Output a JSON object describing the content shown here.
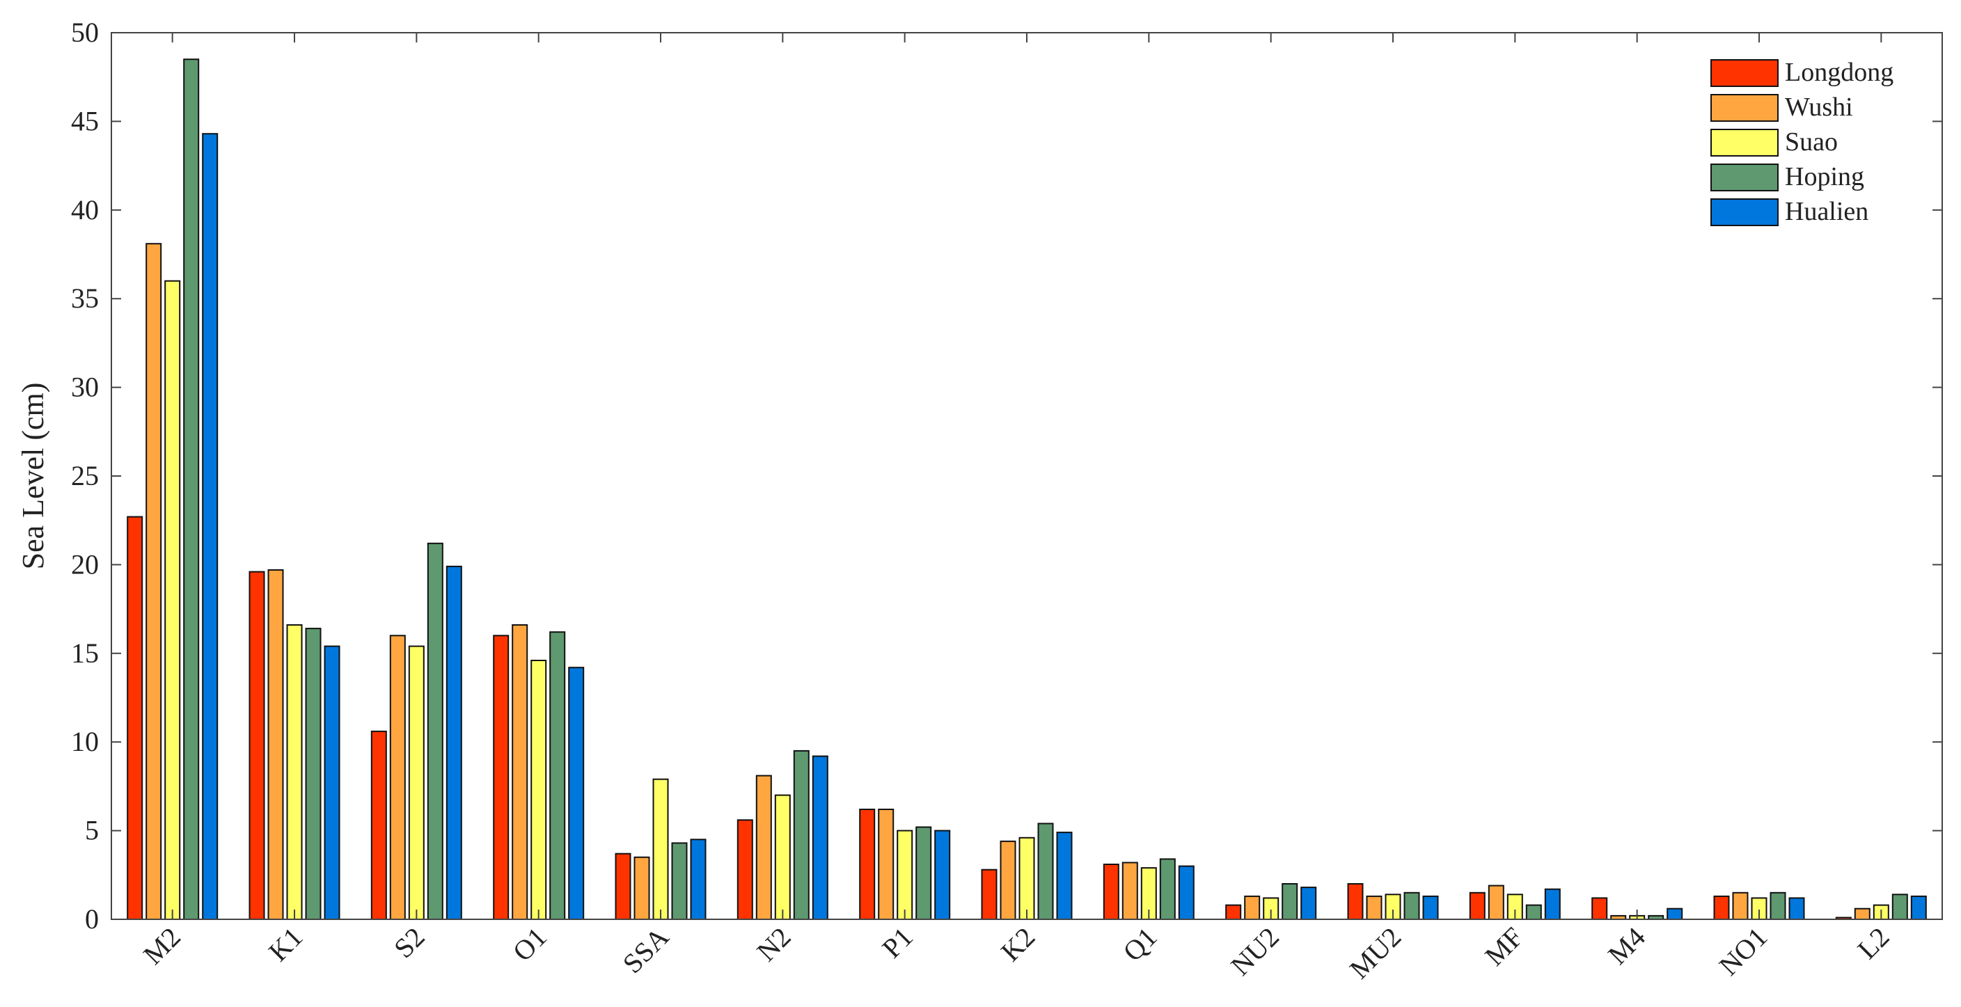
{
  "chart_data": {
    "type": "bar",
    "ylabel": "Sea Level (cm)",
    "ylim": [
      0,
      50
    ],
    "yticks": [
      0,
      5,
      10,
      15,
      20,
      25,
      30,
      35,
      40,
      45,
      50
    ],
    "categories": [
      "M2",
      "K1",
      "S2",
      "O1",
      "SSA",
      "N2",
      "P1",
      "K2",
      "Q1",
      "NU2",
      "MU2",
      "MF",
      "M4",
      "NO1",
      "L2"
    ],
    "legend_position": "top-right",
    "grid": false,
    "series": [
      {
        "name": "Longdong",
        "color": "#ff3300",
        "values": [
          22.7,
          19.6,
          10.6,
          16.0,
          3.7,
          5.6,
          6.2,
          2.8,
          3.1,
          0.8,
          2.0,
          1.5,
          1.2,
          1.3,
          0.1
        ]
      },
      {
        "name": "Wushi",
        "color": "#ffa640",
        "values": [
          38.1,
          19.7,
          16.0,
          16.6,
          3.5,
          8.1,
          6.2,
          4.4,
          3.2,
          1.3,
          1.3,
          1.9,
          0.2,
          1.5,
          0.6
        ]
      },
      {
        "name": "Suao",
        "color": "#ffff66",
        "values": [
          36.0,
          16.6,
          15.4,
          14.6,
          7.9,
          7.0,
          5.0,
          4.6,
          2.9,
          1.2,
          1.4,
          1.4,
          0.2,
          1.2,
          0.8
        ]
      },
      {
        "name": "Hoping",
        "color": "#5e9970",
        "values": [
          48.5,
          16.4,
          21.2,
          16.2,
          4.3,
          9.5,
          5.2,
          5.4,
          3.4,
          2.0,
          1.5,
          0.8,
          0.2,
          1.5,
          1.4
        ]
      },
      {
        "name": "Hualien",
        "color": "#0077dd",
        "values": [
          44.3,
          15.4,
          19.9,
          14.2,
          4.5,
          9.2,
          5.0,
          4.9,
          3.0,
          1.8,
          1.3,
          1.7,
          0.6,
          1.2,
          1.3
        ]
      }
    ]
  }
}
